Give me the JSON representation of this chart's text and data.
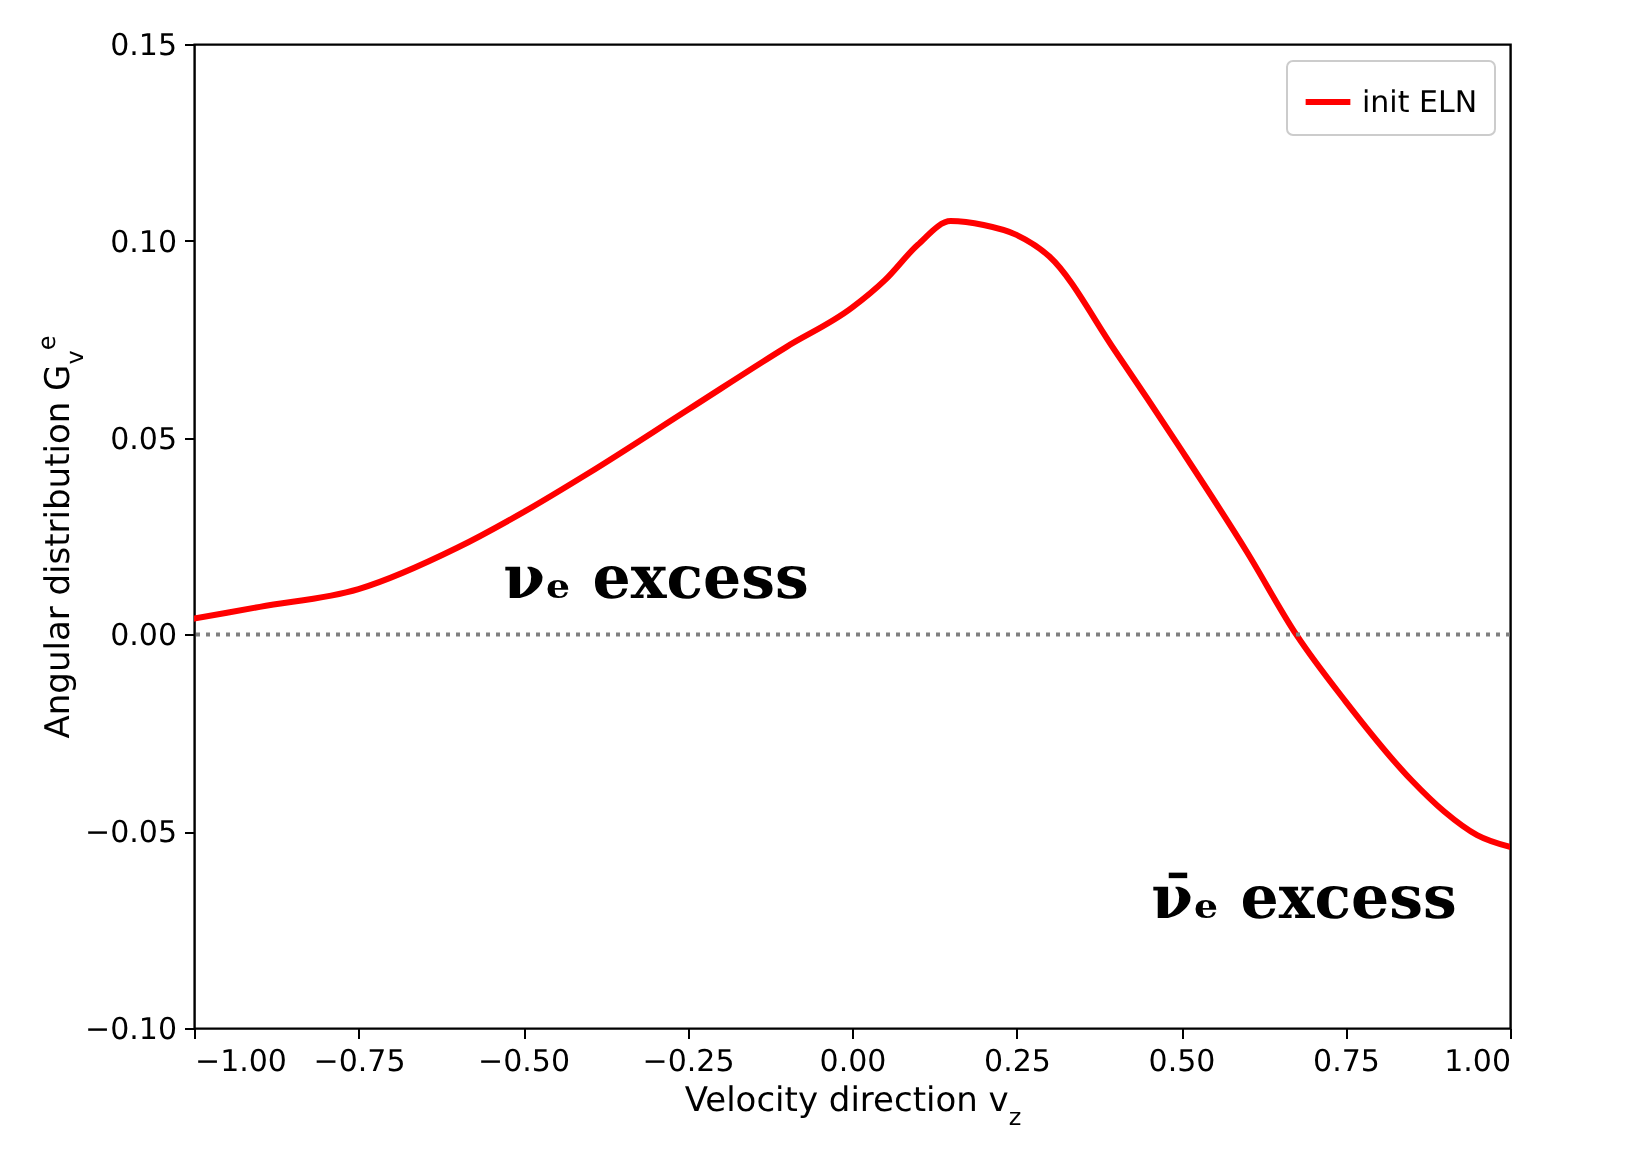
{
  "chart_data": {
    "type": "line",
    "xlabel": "Velocity direction v$_{z}$",
    "ylabel": "Angular distribution G$_{v}$$^{e}$",
    "x": [
      -1,
      -0.9,
      -0.75,
      -0.6,
      -0.5,
      -0.4,
      -0.25,
      -0.1,
      0,
      0.05,
      0.1,
      0.15,
      0.2,
      0.25,
      0.3,
      0.4,
      0.5,
      0.6,
      0.675,
      0.75,
      0.85,
      0.9,
      0.95,
      1
    ],
    "series": [
      {
        "name": "init ELN",
        "color": "#ff0000",
        "values": [
          0.004,
          0.007,
          0.0115,
          0.022,
          0.031,
          0.041,
          0.057,
          0.073,
          0.083,
          0.09,
          0.099,
          0.105,
          0.104,
          0.1015,
          0.096,
          0.072,
          0.047,
          0.021,
          0.0,
          -0.017,
          -0.037,
          -0.045,
          -0.051,
          -0.054
        ]
      }
    ],
    "xlim": [
      -1,
      1
    ],
    "xticks": [
      {
        "value": -1,
        "label": "−1.00"
      },
      {
        "value": -0.75,
        "label": "−0.75"
      },
      {
        "value": -0.5,
        "label": "−0.50"
      },
      {
        "value": -0.25,
        "label": "−0.25"
      },
      {
        "value": 0,
        "label": "0.00"
      },
      {
        "value": 0.25,
        "label": "0.25"
      },
      {
        "value": 0.5,
        "label": "0.50"
      },
      {
        "value": 0.75,
        "label": "0.75"
      },
      {
        "value": 1,
        "label": "1.00"
      }
    ],
    "ylim": [
      -0.1,
      0.15
    ],
    "yticks": [
      {
        "value": -0.1,
        "label": "−0.10"
      },
      {
        "value": -0.05,
        "label": "−0.05"
      },
      {
        "value": 0,
        "label": "0.00"
      },
      {
        "value": 0.05,
        "label": "0.05"
      },
      {
        "value": 0.1,
        "label": "0.10"
      },
      {
        "value": 0.15,
        "label": "0.15"
      }
    ],
    "ref_lines": [
      {
        "axis": "y",
        "value": 0,
        "color": "#808080",
        "line_style": "dotted"
      }
    ],
    "annotations": [
      "νₑ excess",
      "ν̄ₑ excess"
    ],
    "legend": "top right",
    "grid": false,
    "line_style": "solid",
    "marker": "none"
  }
}
